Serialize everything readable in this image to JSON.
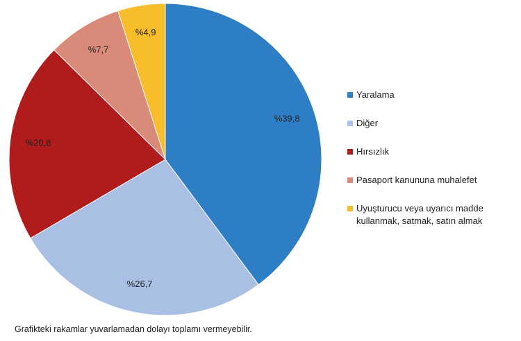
{
  "chart_data": {
    "type": "pie",
    "categories": [
      "Yaralama",
      "Diğer",
      "Hırsızlık",
      "Pasaport kanununa muhalefet",
      "Uyuşturucu veya uyarıcı madde kullanmak, satmak, satın almak"
    ],
    "values": [
      39.8,
      26.7,
      20.8,
      7.7,
      4.9
    ],
    "value_labels": [
      "%39,8",
      "%26,7",
      "%20,8",
      "%7,7",
      "%4,9"
    ],
    "colors": [
      "#2e7ec6",
      "#a9c0e4",
      "#b01c1c",
      "#d98a78",
      "#f7bd2a"
    ],
    "legend": "right",
    "footnote": "Grafikteki rakamlar yuvarlamadan dolayı toplamı vermeyebilir."
  }
}
